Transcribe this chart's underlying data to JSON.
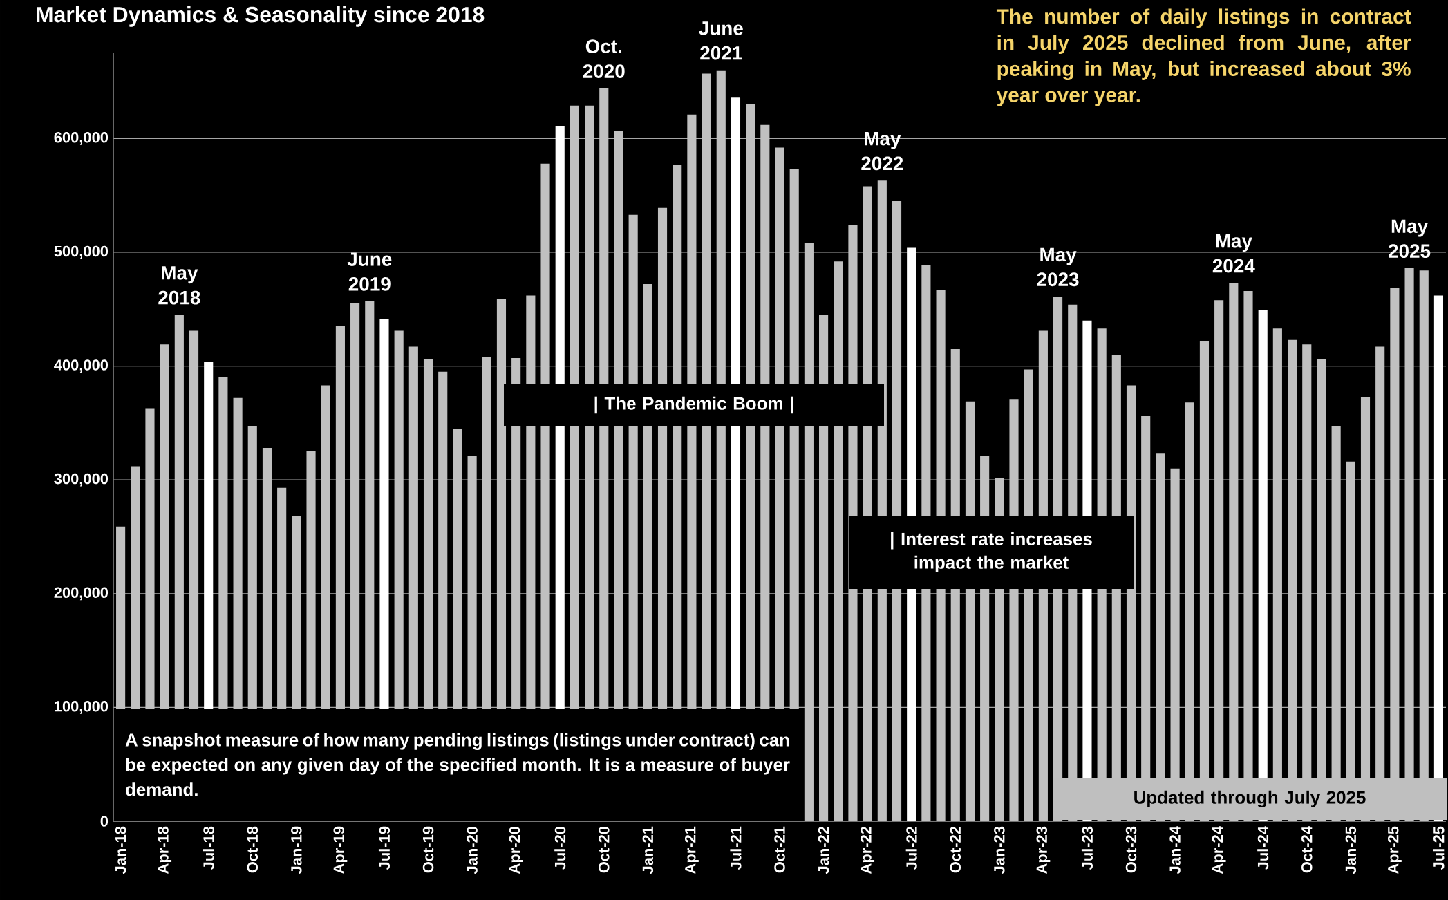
{
  "chart_data": {
    "type": "bar",
    "title": "Market Dynamics & Seasonality since 2018",
    "categories": [
      "Jan-18",
      null,
      null,
      "Apr-18",
      null,
      null,
      "Jul-18",
      null,
      null,
      "Oct-18",
      null,
      null,
      "Jan-19",
      null,
      null,
      "Apr-19",
      null,
      null,
      "Jul-19",
      null,
      null,
      "Oct-19",
      null,
      null,
      "Jan-20",
      null,
      null,
      "Apr-20",
      null,
      null,
      "Jul-20",
      null,
      null,
      "Oct-20",
      null,
      null,
      "Jan-21",
      null,
      null,
      "Apr-21",
      null,
      null,
      "Jul-21",
      null,
      null,
      "Oct-21",
      null,
      null,
      "Jan-22",
      null,
      null,
      "Apr-22",
      null,
      null,
      "Jul-22",
      null,
      null,
      "Oct-22",
      null,
      null,
      "Jan-23",
      null,
      null,
      "Apr-23",
      null,
      null,
      "Jul-23",
      null,
      null,
      "Oct-23",
      null,
      null,
      "Jan-24",
      null,
      null,
      "Apr-24",
      null,
      null,
      "Jul-24",
      null,
      null,
      "Oct-24",
      null,
      null,
      "Jan-25",
      null,
      null,
      "Apr-25",
      null,
      null,
      "Jul-25"
    ],
    "values": [
      259000,
      312000,
      363000,
      419000,
      445000,
      431000,
      404000,
      390000,
      372000,
      347000,
      328000,
      293000,
      268000,
      325000,
      383000,
      435000,
      455000,
      457000,
      441000,
      431000,
      417000,
      406000,
      395000,
      345000,
      321000,
      408000,
      459000,
      407000,
      462000,
      578000,
      611000,
      629000,
      629000,
      644000,
      607000,
      533000,
      472000,
      539000,
      577000,
      621000,
      657000,
      660000,
      636000,
      630000,
      612000,
      592000,
      573000,
      508000,
      445000,
      492000,
      524000,
      558000,
      563000,
      545000,
      504000,
      489000,
      467000,
      415000,
      369000,
      321000,
      302000,
      371000,
      397000,
      431000,
      461000,
      454000,
      440000,
      433000,
      410000,
      383000,
      356000,
      323000,
      310000,
      368000,
      422000,
      458000,
      473000,
      466000,
      449000,
      433000,
      423000,
      419000,
      406000,
      347000,
      316000,
      373000,
      417000,
      469000,
      486000,
      484000,
      462000
    ],
    "colors": [
      "#c0c0c0",
      "#c0c0c0",
      "#c0c0c0",
      "#c0c0c0",
      "#c0c0c0",
      "#c0c0c0",
      "#ffffff",
      "#c0c0c0",
      "#c0c0c0",
      "#c0c0c0",
      "#c0c0c0",
      "#c0c0c0",
      "#c0c0c0",
      "#c0c0c0",
      "#c0c0c0",
      "#c0c0c0",
      "#c0c0c0",
      "#c0c0c0",
      "#ffffff",
      "#c0c0c0",
      "#c0c0c0",
      "#c0c0c0",
      "#c0c0c0",
      "#c0c0c0",
      "#c0c0c0",
      "#c0c0c0",
      "#c0c0c0",
      "#c0c0c0",
      "#c0c0c0",
      "#c0c0c0",
      "#ffffff",
      "#c0c0c0",
      "#c0c0c0",
      "#c0c0c0",
      "#c0c0c0",
      "#c0c0c0",
      "#c0c0c0",
      "#c0c0c0",
      "#c0c0c0",
      "#c0c0c0",
      "#c0c0c0",
      "#c0c0c0",
      "#ffffff",
      "#c0c0c0",
      "#c0c0c0",
      "#c0c0c0",
      "#c0c0c0",
      "#c0c0c0",
      "#c0c0c0",
      "#c0c0c0",
      "#c0c0c0",
      "#c0c0c0",
      "#c0c0c0",
      "#c0c0c0",
      "#ffffff",
      "#c0c0c0",
      "#c0c0c0",
      "#c0c0c0",
      "#c0c0c0",
      "#c0c0c0",
      "#c0c0c0",
      "#c0c0c0",
      "#c0c0c0",
      "#c0c0c0",
      "#c0c0c0",
      "#c0c0c0",
      "#ffffff",
      "#c0c0c0",
      "#c0c0c0",
      "#c0c0c0",
      "#c0c0c0",
      "#c0c0c0",
      "#c0c0c0",
      "#c0c0c0",
      "#c0c0c0",
      "#c0c0c0",
      "#c0c0c0",
      "#c0c0c0",
      "#ffffff",
      "#c0c0c0",
      "#c0c0c0",
      "#c0c0c0",
      "#c0c0c0",
      "#c0c0c0",
      "#c0c0c0",
      "#c0c0c0",
      "#c0c0c0",
      "#c0c0c0",
      "#c0c0c0",
      "#c0c0c0",
      "#ffffff"
    ],
    "ylim": [
      0,
      675000
    ],
    "yticks": [
      0,
      {
        "value": 100000,
        "label": "100,000"
      },
      {
        "value": 200000,
        "label": "200,000"
      },
      {
        "value": 300000,
        "label": "300,000"
      },
      {
        "value": 400000,
        "label": "400,000"
      },
      {
        "value": 500000,
        "label": "500,000"
      },
      {
        "value": 600000,
        "label": "600,000"
      }
    ],
    "grid": "y",
    "annotations": [
      "May 2018",
      "June 2019",
      "Oct. 2020",
      "June 2021",
      "May 2022",
      "May 2023",
      "May 2024",
      "May 2025",
      "| The Pandemic Boom |",
      "| Interest rate increases impact the market",
      "A snapshot measure of how many pending listings (listings under contract) can be expected on any given day of the specified month. It is a measure of buyer demand.",
      "Updated through July 2025",
      "The number of daily listings in contract in July 2025 declined from June, after peaking in May, but increased about 3% year over year."
    ]
  }
}
